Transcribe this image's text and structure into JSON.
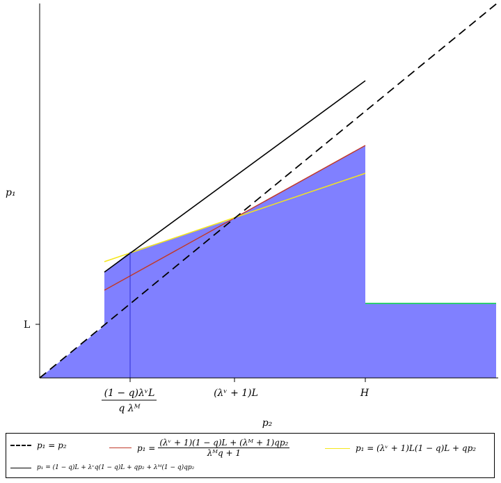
{
  "chart_data": {
    "type": "line",
    "xlabel": "p₂",
    "ylabel": "p₁",
    "x_tick_labels": {
      "t1_num": "(1 − q)λᵛL",
      "t1_den": "q λᴹ",
      "t2": "(λᵛ + 1)L",
      "t3": "H"
    },
    "y_tick_labels": [
      "L"
    ],
    "fill_color": "#8080ff",
    "series": [
      {
        "name": "p₁ = p₂",
        "style": "dashed",
        "color": "#000000"
      },
      {
        "name": "p₁ = ((λᵛ + 1)(1 − q)L + (λᴹ + 1)qp₂) / (λᴹq + 1)",
        "style": "solid",
        "color": "#c0392b"
      },
      {
        "name": "p₁ = (λᵛ + 1)L(1 − q)L + qp₂",
        "style": "solid",
        "color": "#f5e71a"
      },
      {
        "name": "p₁ = (1 − q)L + λᵛq(1 − q)L + qp₂ + λᴹ(1 − q)qp₂",
        "style": "solid",
        "color": "#000000"
      }
    ],
    "lower_step_color": "#2ecc71"
  },
  "legend": {
    "item1": "p₁ = p₂",
    "item2_lhs": "p₁ =",
    "item2_num": "(λᵛ + 1)(1 − q)L + (λᴹ + 1)qp₂",
    "item2_den": "λᴹq + 1",
    "item3": "p₁ = (λᵛ + 1)L(1 − q)L + qp₂",
    "item4": "p₁ = (1 − q)L + λᵛq(1 − q)L + qp₂ + λᴹ(1 − q)qp₂"
  }
}
